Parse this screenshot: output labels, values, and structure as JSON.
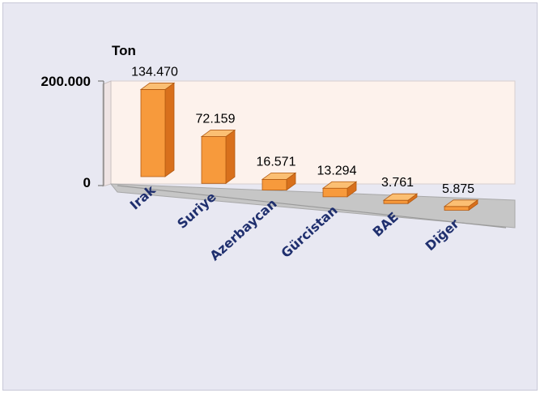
{
  "chart_data": {
    "type": "bar",
    "unit_label": "Ton",
    "y_ticks": [
      "200.000",
      "0"
    ],
    "ylim": [
      0,
      200000
    ],
    "categories": [
      "Irak",
      "Suriye",
      "Azerbaycan",
      "Gürcistan",
      "BAE",
      "Diğer"
    ],
    "values": [
      134470,
      72159,
      16571,
      13294,
      3761,
      5875
    ],
    "value_labels": [
      "134.470",
      "72.159",
      "16.571",
      "13.294",
      "3.761",
      "5.875"
    ],
    "colors": {
      "bar_front": "#f79a3c",
      "bar_top": "#fbbf73",
      "bar_side": "#d8701c",
      "wall": "#fdf2ec",
      "floor": "#c6c6c6",
      "category_text": "#1f2f6e"
    }
  }
}
